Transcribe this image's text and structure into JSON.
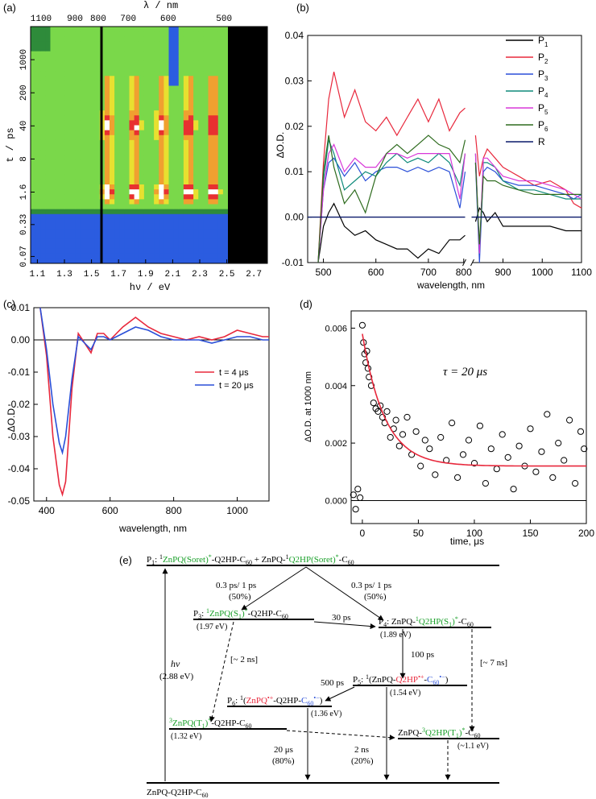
{
  "panels": {
    "a": {
      "label": "(a)",
      "top_axis_label": "λ / nm",
      "top_ticks": [
        "1100",
        "900",
        "800",
        "700",
        "600",
        "500"
      ],
      "bottom_axis_label": "hν / eV",
      "bottom_ticks": [
        "1.1",
        "1.3",
        "1.5",
        "1.7",
        "1.9",
        "2.1",
        "2.3",
        "2.5",
        "2.7"
      ],
      "left_axis_label": "t / ps",
      "left_ticks": [
        "1000",
        "200",
        "40",
        "8",
        "1.6",
        "0.33",
        "0.07"
      ],
      "colors": {
        "black": "#000000",
        "blue": "#2b5ce0",
        "green": "#2e8b3a",
        "lightgreen": "#7ad84a",
        "yellow": "#e8e030",
        "orange": "#f0a030",
        "red": "#e83030",
        "white": "#ffffff"
      }
    },
    "b": {
      "label": "(b)",
      "xlabel": "wavelength, nm",
      "ylabel": "ΔO.D.",
      "xticks": [
        "500",
        "600",
        "700",
        "800",
        "900",
        "1000",
        "1100"
      ],
      "yticks": [
        "0.04",
        "0.03",
        "0.02",
        "0.01",
        "0.00",
        "-0.01"
      ],
      "legend": [
        {
          "name": "P",
          "sub": "1",
          "color": "#000000"
        },
        {
          "name": "P",
          "sub": "2",
          "color": "#e8283c"
        },
        {
          "name": "P",
          "sub": "3",
          "color": "#2a4fd8"
        },
        {
          "name": "P",
          "sub": "4",
          "color": "#0e8a7a"
        },
        {
          "name": "P",
          "sub": "5",
          "color": "#d838d8"
        },
        {
          "name": "P",
          "sub": "6",
          "color": "#2e6b1e"
        },
        {
          "name": "R",
          "sub": "",
          "color": "#0a1a6a"
        }
      ]
    },
    "c": {
      "label": "(c)",
      "xlabel": "wavelength, nm",
      "ylabel": "ΔO.D.",
      "xticks": [
        "400",
        "600",
        "800",
        "1000"
      ],
      "yticks": [
        "0.01",
        "0.00",
        "-0.01",
        "-0.02",
        "-0.03",
        "-0.04",
        "-0.05"
      ],
      "legend": [
        {
          "name": "t = 4 μs",
          "color": "#e8283c"
        },
        {
          "name": "t = 20 μs",
          "color": "#2a4fd8"
        }
      ]
    },
    "d": {
      "label": "(d)",
      "xlabel": "time, μs",
      "ylabel": "ΔO.D. at 1000 nm",
      "xticks": [
        "0",
        "50",
        "100",
        "150",
        "200"
      ],
      "yticks": [
        "0.006",
        "0.004",
        "0.002",
        "0.000"
      ],
      "annotation": "τ = 20 μs",
      "fit_color": "#e8283c"
    },
    "e": {
      "label": "(e)",
      "arrows": [
        "0.3 ps/ 1 ps",
        "(50%)",
        "0.3 ps/ 1 ps",
        "(50%)",
        "30 ps",
        "100 ps",
        "500 ps",
        "[~ 2 ns]",
        "[~ 7 ns]",
        "20 μs",
        "(80%)",
        "2 ns",
        "(20%)",
        "hν",
        "(2.88 eV)"
      ],
      "energies": [
        "(1.97 eV)",
        "(1.89 eV)",
        "(1.54 eV)",
        "(1.36 eV)",
        "(1.32 eV)",
        "(~1.1 eV)"
      ],
      "ground": "ZnPQ-Q2HP-C60",
      "green": "#1aa02a",
      "red": "#e8283c",
      "blue": "#2a4fd8"
    }
  },
  "chart_data": [
    {
      "panel": "a",
      "type": "heatmap",
      "x_axis": "hν / eV",
      "x_range": [
        1.05,
        2.8
      ],
      "y_axis": "t / ps (log)",
      "y_range": [
        0.05,
        5000
      ],
      "x2_axis": "λ / nm",
      "cursor_line_eV": 1.56,
      "bands_eV": [
        1.62,
        1.82,
        2.02,
        2.22,
        2.4
      ],
      "peak_time_ps": [
        1.6,
        40
      ],
      "signal_edge_eV": 2.52
    },
    {
      "panel": "b",
      "type": "line",
      "xlim": [
        470,
        1100
      ],
      "ylim": [
        -0.01,
        0.04
      ],
      "axis_break": [
        770,
        820
      ],
      "series": [
        {
          "name": "P1",
          "x": [
            490,
            500,
            510,
            520,
            540,
            560,
            580,
            600,
            620,
            640,
            660,
            680,
            700,
            720,
            740,
            760,
            770,
            830,
            840,
            850,
            860,
            880,
            900,
            940,
            980,
            1020,
            1060,
            1080,
            1100
          ],
          "y": [
            -0.012,
            -0.002,
            0.001,
            0.003,
            -0.002,
            -0.004,
            -0.003,
            -0.005,
            -0.006,
            -0.007,
            -0.007,
            -0.009,
            -0.007,
            -0.008,
            -0.005,
            -0.005,
            -0.004,
            -0.001,
            0.002,
            0.001,
            -0.001,
            0.001,
            -0.002,
            -0.002,
            -0.002,
            -0.002,
            -0.003,
            -0.003,
            -0.003
          ]
        },
        {
          "name": "P2",
          "x": [
            490,
            500,
            510,
            520,
            530,
            540,
            560,
            580,
            600,
            620,
            640,
            660,
            680,
            700,
            720,
            740,
            760,
            770,
            830,
            840,
            850,
            860,
            880,
            900,
            940,
            980,
            1020,
            1060,
            1080,
            1100
          ],
          "y": [
            -0.012,
            0.012,
            0.026,
            0.032,
            0.027,
            0.022,
            0.028,
            0.021,
            0.019,
            0.022,
            0.018,
            0.022,
            0.026,
            0.021,
            0.026,
            0.019,
            0.023,
            0.024,
            0.018,
            0.009,
            0.013,
            0.015,
            0.013,
            0.011,
            0.009,
            0.007,
            0.008,
            0.006,
            0.003,
            0.002
          ]
        },
        {
          "name": "P3",
          "x": [
            490,
            500,
            510,
            520,
            540,
            560,
            580,
            600,
            620,
            640,
            660,
            680,
            700,
            720,
            740,
            760,
            770,
            830,
            840,
            850,
            860,
            880,
            900,
            940,
            980,
            1020,
            1060,
            1080,
            1100
          ],
          "y": [
            -0.012,
            0.006,
            0.012,
            0.013,
            0.009,
            0.012,
            0.008,
            0.01,
            0.011,
            0.011,
            0.01,
            0.011,
            0.01,
            0.011,
            0.01,
            0.002,
            0.01,
            0.012,
            -0.01,
            0.01,
            0.011,
            0.01,
            0.008,
            0.007,
            0.007,
            0.006,
            0.005,
            0.004,
            0.005
          ]
        },
        {
          "name": "P4",
          "x": [
            490,
            500,
            510,
            520,
            540,
            560,
            580,
            600,
            620,
            640,
            660,
            680,
            700,
            720,
            740,
            760,
            770,
            830,
            840,
            850,
            860,
            880,
            900,
            940,
            980,
            1020,
            1060,
            1080,
            1100
          ],
          "y": [
            -0.012,
            0.008,
            0.017,
            0.014,
            0.006,
            0.008,
            0.01,
            0.009,
            0.012,
            0.014,
            0.012,
            0.013,
            0.012,
            0.014,
            0.012,
            0.007,
            0.014,
            0.014,
            -0.008,
            0.012,
            0.012,
            0.011,
            0.008,
            0.006,
            0.006,
            0.005,
            0.004,
            0.004,
            0.004
          ]
        },
        {
          "name": "P5",
          "x": [
            490,
            500,
            510,
            520,
            540,
            560,
            580,
            600,
            620,
            640,
            660,
            680,
            700,
            720,
            740,
            760,
            770,
            830,
            840,
            850,
            860,
            880,
            900,
            940,
            980,
            1020,
            1060,
            1080,
            1100
          ],
          "y": [
            -0.012,
            0.006,
            0.014,
            0.016,
            0.01,
            0.013,
            0.011,
            0.011,
            0.014,
            0.014,
            0.013,
            0.014,
            0.014,
            0.014,
            0.014,
            0.004,
            0.014,
            0.014,
            -0.008,
            0.013,
            0.013,
            0.011,
            0.009,
            0.008,
            0.008,
            0.007,
            0.006,
            0.005,
            0.004
          ]
        },
        {
          "name": "P6",
          "x": [
            490,
            500,
            510,
            520,
            540,
            560,
            580,
            600,
            620,
            640,
            660,
            680,
            700,
            720,
            740,
            760,
            770,
            830,
            840,
            850,
            860,
            880,
            900,
            940,
            980,
            1020,
            1060,
            1080,
            1100
          ],
          "y": [
            -0.012,
            0.01,
            0.018,
            0.011,
            0.003,
            0.006,
            0.001,
            0.009,
            0.014,
            0.016,
            0.014,
            0.016,
            0.018,
            0.016,
            0.015,
            0.012,
            0.017,
            0.012,
            -0.006,
            0.009,
            0.008,
            0.008,
            0.007,
            0.006,
            0.005,
            0.005,
            0.005,
            0.005,
            0.005
          ]
        },
        {
          "name": "R",
          "x": [
            470,
            770,
            820,
            1100
          ],
          "y": [
            0,
            0,
            0,
            0
          ]
        }
      ]
    },
    {
      "panel": "c",
      "type": "line",
      "xlim": [
        360,
        1100
      ],
      "ylim": [
        -0.05,
        0.01
      ],
      "series": [
        {
          "name": "t = 4 μs",
          "x": [
            380,
            400,
            420,
            440,
            450,
            460,
            480,
            500,
            520,
            540,
            560,
            580,
            600,
            640,
            680,
            720,
            760,
            800,
            840,
            880,
            920,
            960,
            1000,
            1040,
            1080,
            1100
          ],
          "y": [
            0.01,
            -0.005,
            -0.03,
            -0.045,
            -0.048,
            -0.044,
            -0.015,
            0.002,
            -0.001,
            -0.004,
            0.002,
            0.002,
            0.0,
            0.004,
            0.007,
            0.004,
            0.002,
            0.001,
            0.0,
            0.001,
            0.0,
            0.001,
            0.003,
            0.002,
            0.001,
            0.001
          ]
        },
        {
          "name": "t = 20 μs",
          "x": [
            380,
            400,
            420,
            440,
            450,
            460,
            480,
            500,
            520,
            540,
            560,
            580,
            600,
            640,
            680,
            720,
            760,
            800,
            840,
            880,
            920,
            960,
            1000,
            1040,
            1080,
            1100
          ],
          "y": [
            0.01,
            -0.003,
            -0.02,
            -0.032,
            -0.035,
            -0.03,
            -0.012,
            0.001,
            -0.001,
            -0.003,
            0.001,
            0.001,
            0.0,
            0.002,
            0.004,
            0.003,
            0.001,
            0.0,
            0.0,
            0.0,
            -0.001,
            0.0,
            0.001,
            0.001,
            0.0,
            0.0
          ]
        }
      ]
    },
    {
      "panel": "d",
      "type": "scatter",
      "xlim": [
        -10,
        200
      ],
      "ylim": [
        -0.0008,
        0.0066
      ],
      "fit": {
        "name": "fit",
        "tau": 20,
        "offset": 0.0012,
        "amplitude": 0.0046
      },
      "series": [
        {
          "name": "data",
          "x": [
            -8,
            -6,
            -4,
            -2,
            0,
            1,
            2,
            3,
            4,
            5,
            6,
            8,
            10,
            12,
            14,
            16,
            18,
            20,
            22,
            25,
            28,
            30,
            33,
            36,
            40,
            44,
            48,
            52,
            56,
            60,
            65,
            70,
            75,
            80,
            85,
            90,
            95,
            100,
            105,
            110,
            115,
            120,
            125,
            130,
            135,
            140,
            145,
            150,
            155,
            160,
            165,
            170,
            175,
            180,
            185,
            190,
            195,
            198
          ],
          "y": [
            0.0002,
            -0.0003,
            0.0004,
            0.0001,
            0.0061,
            0.0055,
            0.0051,
            0.0048,
            0.0052,
            0.0046,
            0.0043,
            0.004,
            0.0034,
            0.0032,
            0.0031,
            0.0033,
            0.0029,
            0.0027,
            0.0031,
            0.0022,
            0.0025,
            0.0028,
            0.0019,
            0.0023,
            0.0029,
            0.0016,
            0.0024,
            0.0012,
            0.0021,
            0.0018,
            0.0009,
            0.0022,
            0.0014,
            0.0027,
            0.0008,
            0.0016,
            0.0021,
            0.0013,
            0.0026,
            0.0006,
            0.0018,
            0.0011,
            0.0023,
            0.0015,
            0.0004,
            0.0019,
            0.0012,
            0.0025,
            0.001,
            0.0017,
            0.003,
            0.0008,
            0.002,
            0.0014,
            0.0028,
            0.0006,
            0.0024,
            0.0018
          ]
        }
      ]
    }
  ]
}
